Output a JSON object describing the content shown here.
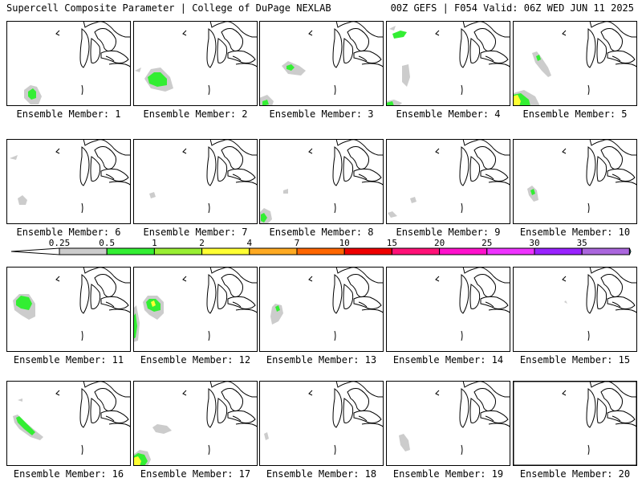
{
  "header": {
    "title_left": "Supercell Composite Parameter | College of DuPage NEXLAB",
    "title_right": "00Z GEFS | F054 Valid: 06Z WED JUN 11 2025"
  },
  "members": [
    {
      "label": "Ensemble Member: 1"
    },
    {
      "label": "Ensemble Member: 2"
    },
    {
      "label": "Ensemble Member: 3"
    },
    {
      "label": "Ensemble Member: 4"
    },
    {
      "label": "Ensemble Member: 5"
    },
    {
      "label": "Ensemble Member: 6"
    },
    {
      "label": "Ensemble Member: 7"
    },
    {
      "label": "Ensemble Member: 8"
    },
    {
      "label": "Ensemble Member: 9"
    },
    {
      "label": "Ensemble Member: 10"
    },
    {
      "label": "Ensemble Member: 11"
    },
    {
      "label": "Ensemble Member: 12"
    },
    {
      "label": "Ensemble Member: 13"
    },
    {
      "label": "Ensemble Member: 14"
    },
    {
      "label": "Ensemble Member: 15"
    },
    {
      "label": "Ensemble Member: 16"
    },
    {
      "label": "Ensemble Member: 17"
    },
    {
      "label": "Ensemble Member: 18"
    },
    {
      "label": "Ensemble Member: 19"
    },
    {
      "label": "Ensemble Member: 20"
    }
  ],
  "legend": {
    "labels": [
      "0.25",
      "0.5",
      "1",
      "2",
      "4",
      "7",
      "10",
      "15",
      "20",
      "25",
      "30",
      "35"
    ],
    "colors": [
      "#cccccc",
      "#33ee33",
      "#99ee33",
      "#ffff33",
      "#ffaa22",
      "#ff6600",
      "#ee0000",
      "#ff1177",
      "#ff11cc",
      "#ee33ff",
      "#9922ff",
      "#aa66dd",
      "#33dddd"
    ]
  }
}
